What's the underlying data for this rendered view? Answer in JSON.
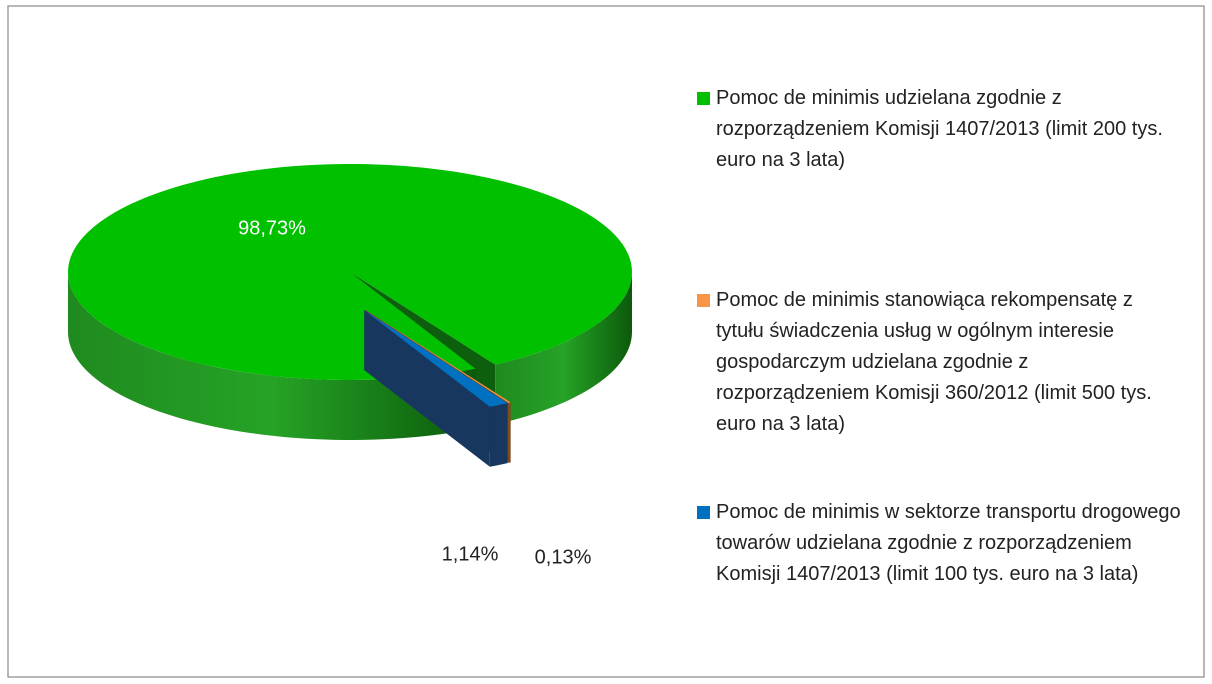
{
  "chart_data": {
    "type": "pie",
    "categories": [
      "Pomoc de minimis udzielana zgodnie z rozporządzeniem Komisji 1407/2013 (limit 200 tys. euro na 3 lata)",
      "Pomoc de minimis stanowiąca rekompensatę z tytułu świadczenia usług w ogólnym interesie gospodarczym udzielana zgodnie z rozporządzeniem Komisji 360/2012 (limit 500 tys. euro na 3 lata)",
      "Pomoc de minimis w sektorze transportu drogowego towarów udzielana zgodnie z rozporządzeniem Komisji 1407/2013 (limit 100 tys. euro na 3 lata)"
    ],
    "values": [
      98.73,
      0.13,
      1.14
    ],
    "value_labels": [
      "98,73%",
      "0,13%",
      "1,14%"
    ],
    "colors": [
      "#00c000",
      "#f79646",
      "#0070c0"
    ],
    "legend": "right"
  }
}
